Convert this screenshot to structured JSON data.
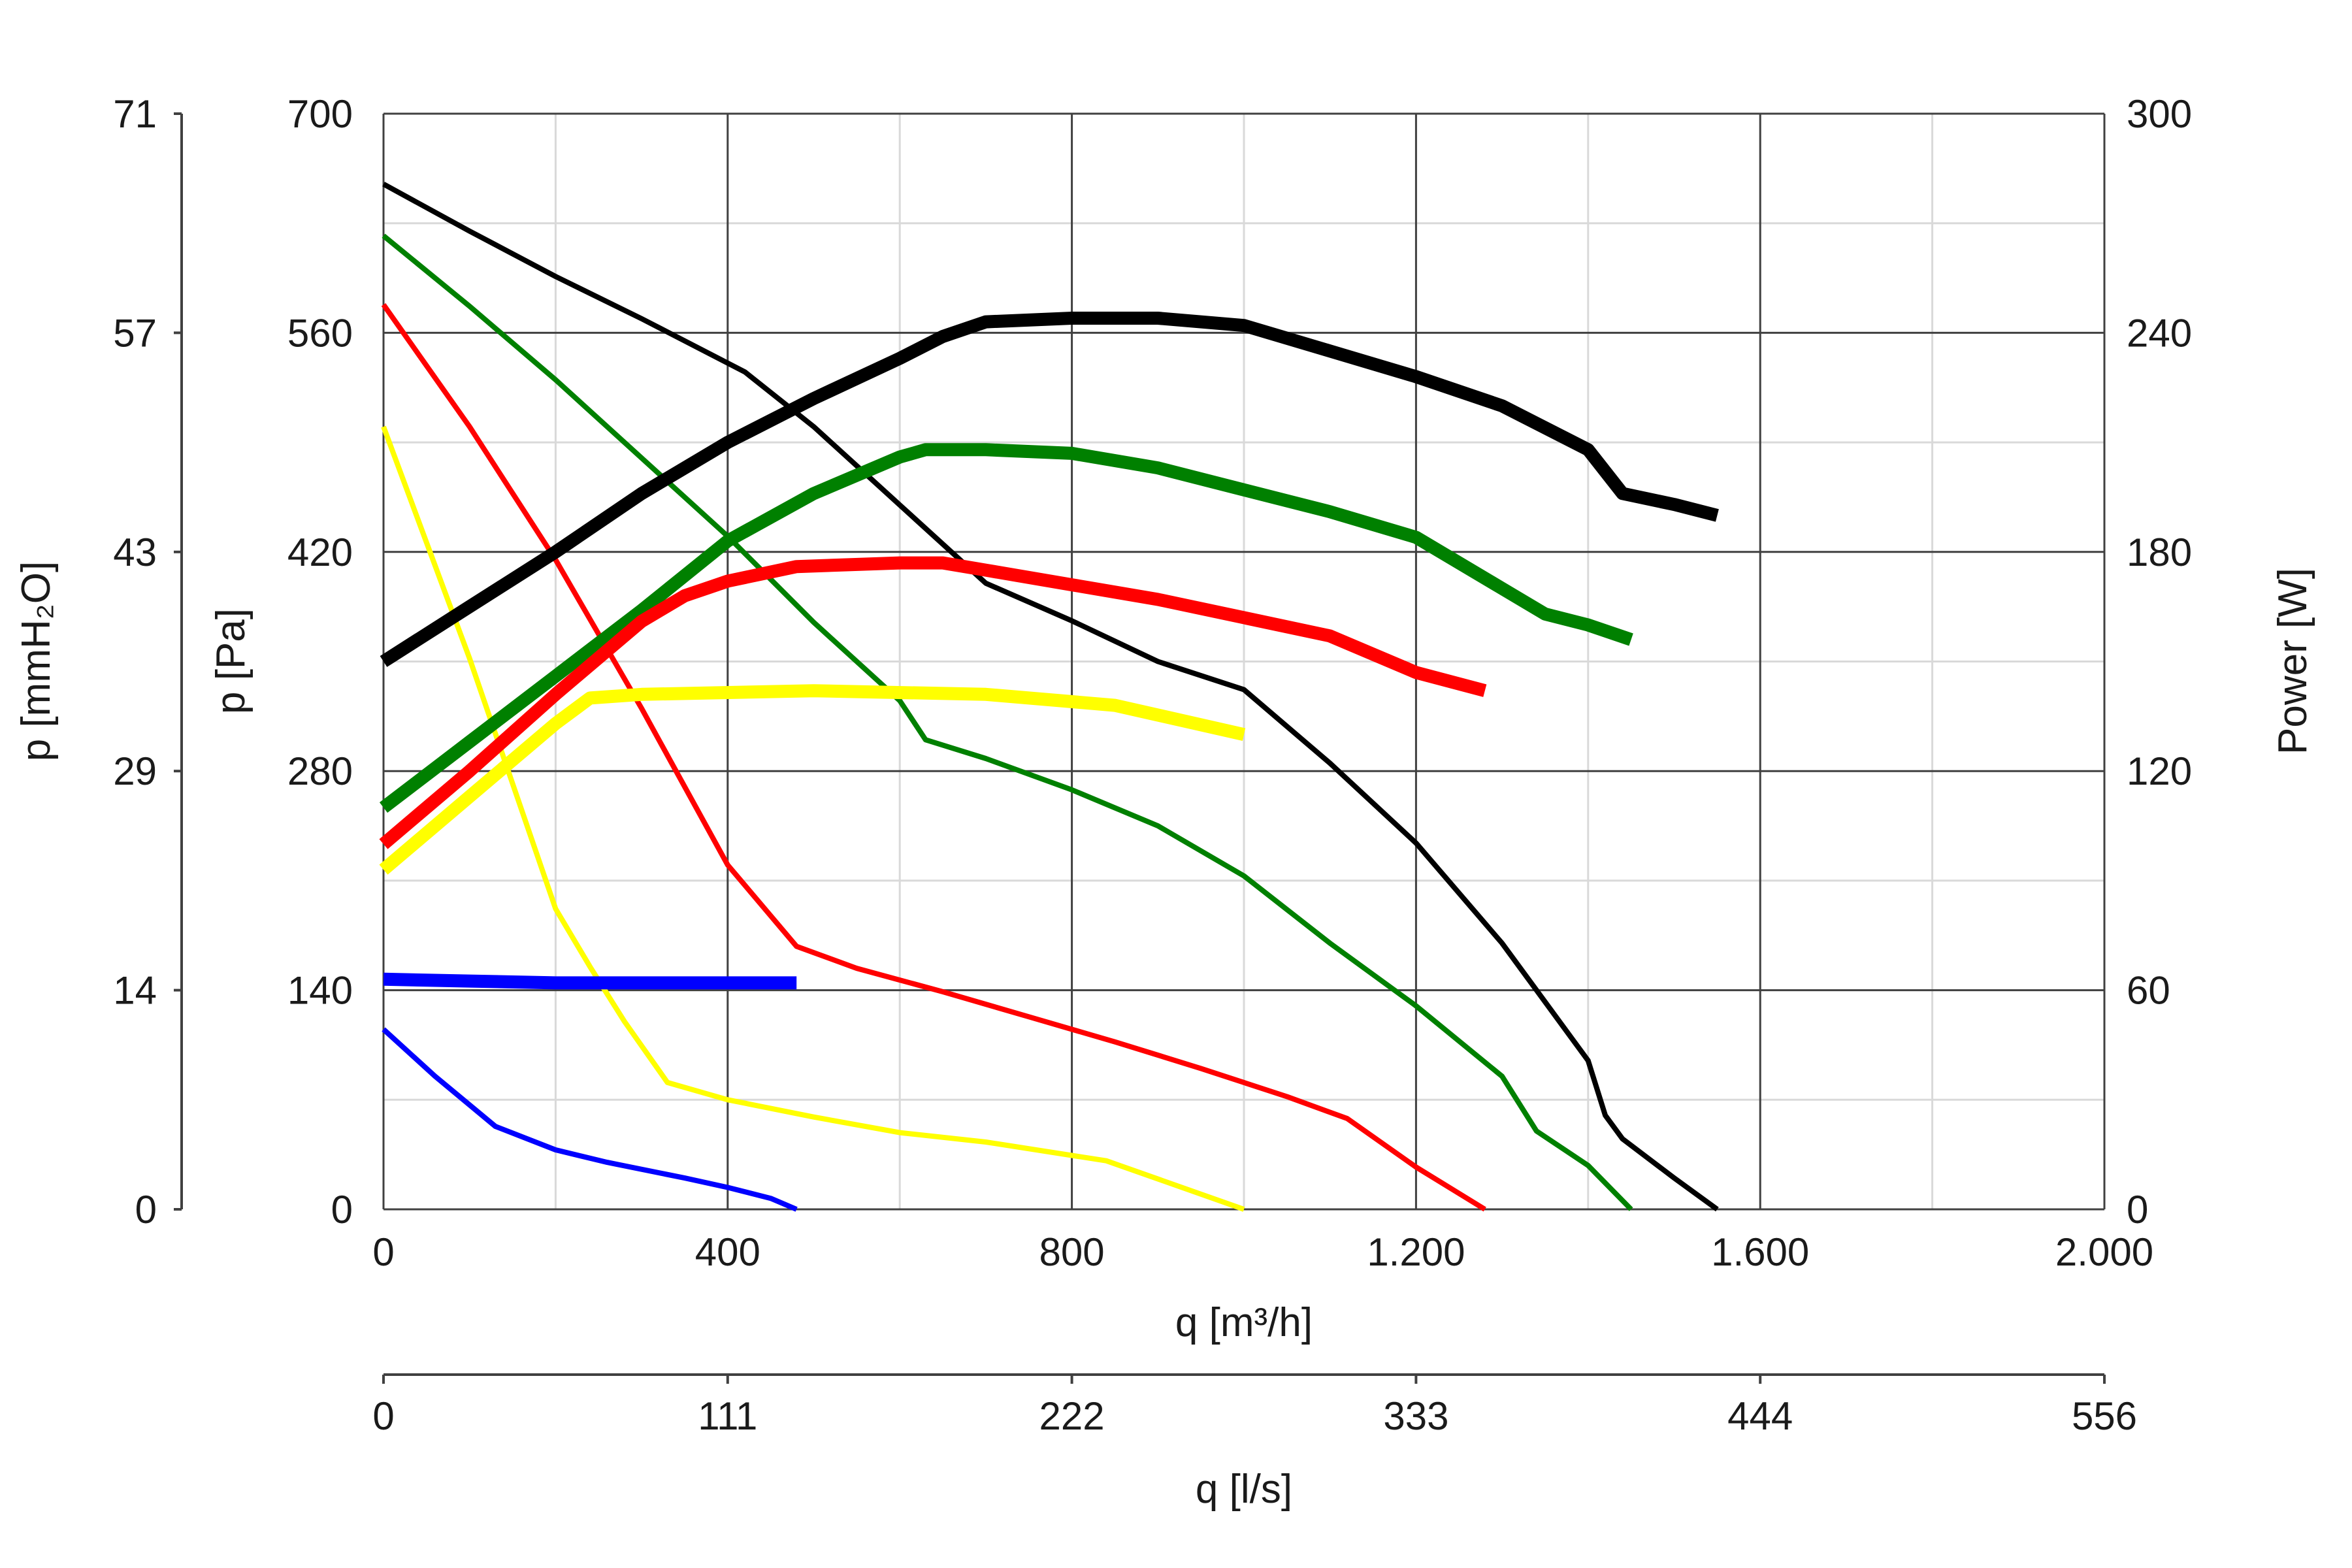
{
  "chart_data": {
    "type": "line",
    "xlabel": "q [m³/h]",
    "xlabel_secondary": "q [l/s]",
    "ylabel_left": "p [Pa]",
    "ylabel_left_secondary": "p [mmH₂O]",
    "ylabel_right": "Power [W]",
    "xlim": [
      0,
      2000
    ],
    "ylim_left": [
      0,
      700
    ],
    "ylim_right": [
      0,
      300
    ],
    "grid": true,
    "x_ticks": [
      0,
      400,
      800,
      1200,
      1600,
      2000
    ],
    "x_tick_labels": [
      "0",
      "400",
      "800",
      "1.200",
      "1.600",
      "2.000"
    ],
    "x2_tick_labels": [
      "0",
      "111",
      "222",
      "333",
      "444",
      "556"
    ],
    "y_ticks": [
      0,
      140,
      280,
      420,
      560,
      700
    ],
    "y_tick_labels": [
      "0",
      "140",
      "280",
      "420",
      "560",
      "700"
    ],
    "y_secondary_tick_labels": [
      "0",
      "14",
      "29",
      "43",
      "57",
      "71"
    ],
    "y_right_tick_labels": [
      "0",
      "60",
      "120",
      "180",
      "240",
      "300"
    ],
    "series": [
      {
        "axis": "pressure",
        "color": "#000000",
        "weight": "thin",
        "x": [
          0,
          100,
          200,
          300,
          420,
          500,
          600,
          700,
          800,
          900,
          1000,
          1100,
          1200,
          1300,
          1400,
          1420,
          1440,
          1500,
          1550
        ],
        "y": [
          655,
          625,
          596,
          569,
          535,
          500,
          450,
          400,
          376,
          350,
          332,
          285,
          234,
          170,
          95,
          60,
          45,
          20,
          0
        ]
      },
      {
        "axis": "pressure",
        "color": "#008000",
        "weight": "thin",
        "x": [
          0,
          100,
          200,
          300,
          400,
          500,
          600,
          630,
          700,
          800,
          900,
          1000,
          1100,
          1200,
          1300,
          1340,
          1400,
          1450
        ],
        "y": [
          622,
          577,
          530,
          480,
          430,
          375,
          325,
          300,
          288,
          268,
          245,
          213,
          170,
          130,
          85,
          50,
          28,
          0
        ]
      },
      {
        "axis": "pressure",
        "color": "#ff0000",
        "weight": "thin",
        "x": [
          0,
          100,
          200,
          300,
          400,
          480,
          550,
          650,
          750,
          850,
          950,
          1050,
          1120,
          1200,
          1280
        ],
        "y": [
          578,
          500,
          415,
          320,
          220,
          168,
          154,
          139,
          123,
          107,
          90,
          72,
          58,
          27,
          0
        ]
      },
      {
        "axis": "pressure",
        "color": "#ffff00",
        "weight": "thin",
        "x": [
          0,
          100,
          200,
          240,
          280,
          330,
          400,
          500,
          600,
          700,
          840,
          1000
        ],
        "y": [
          500,
          352,
          192,
          155,
          120,
          81,
          70,
          59,
          49,
          43,
          31,
          0
        ]
      },
      {
        "axis": "pressure",
        "color": "#0000ff",
        "weight": "thin",
        "x": [
          0,
          60,
          130,
          200,
          260,
          350,
          400,
          450,
          480
        ],
        "y": [
          115,
          85,
          53,
          38,
          30,
          20,
          14,
          7,
          0
        ]
      },
      {
        "axis": "power",
        "color": "#000000",
        "weight": "thick",
        "x": [
          0,
          100,
          200,
          300,
          400,
          500,
          600,
          650,
          700,
          800,
          900,
          1000,
          1100,
          1200,
          1300,
          1400,
          1420,
          1440,
          1500,
          1550
        ],
        "y": [
          150,
          165,
          180,
          196,
          210,
          222,
          233,
          239,
          243,
          244,
          244,
          242,
          235,
          228,
          220,
          208,
          202,
          196,
          193,
          190
        ]
      },
      {
        "axis": "power",
        "color": "#008000",
        "weight": "thick",
        "x": [
          0,
          100,
          200,
          300,
          400,
          500,
          600,
          630,
          700,
          800,
          900,
          1000,
          1100,
          1200,
          1300,
          1350,
          1400,
          1450
        ],
        "y": [
          110,
          128,
          146,
          164,
          183,
          196,
          206,
          208,
          208,
          207,
          203,
          197,
          191,
          184,
          170,
          163,
          160,
          156
        ]
      },
      {
        "axis": "power",
        "color": "#ff0000",
        "weight": "thick",
        "x": [
          0,
          100,
          200,
          300,
          350,
          400,
          480,
          600,
          650,
          700,
          800,
          900,
          1000,
          1100,
          1200,
          1280
        ],
        "y": [
          100,
          120,
          141,
          161,
          168,
          172,
          176,
          177,
          177,
          175,
          171,
          167,
          162,
          157,
          147,
          142
        ]
      },
      {
        "axis": "power",
        "color": "#ffff00",
        "weight": "thick",
        "x": [
          0,
          100,
          200,
          240,
          300,
          500,
          700,
          850,
          1000
        ],
        "y": [
          93,
          113,
          133,
          140,
          141,
          142,
          141,
          138,
          130
        ]
      },
      {
        "axis": "power",
        "color": "#0000ff",
        "weight": "thick",
        "x": [
          0,
          100,
          200,
          300,
          480
        ],
        "y": [
          63,
          62.5,
          62,
          62,
          62
        ]
      }
    ]
  }
}
